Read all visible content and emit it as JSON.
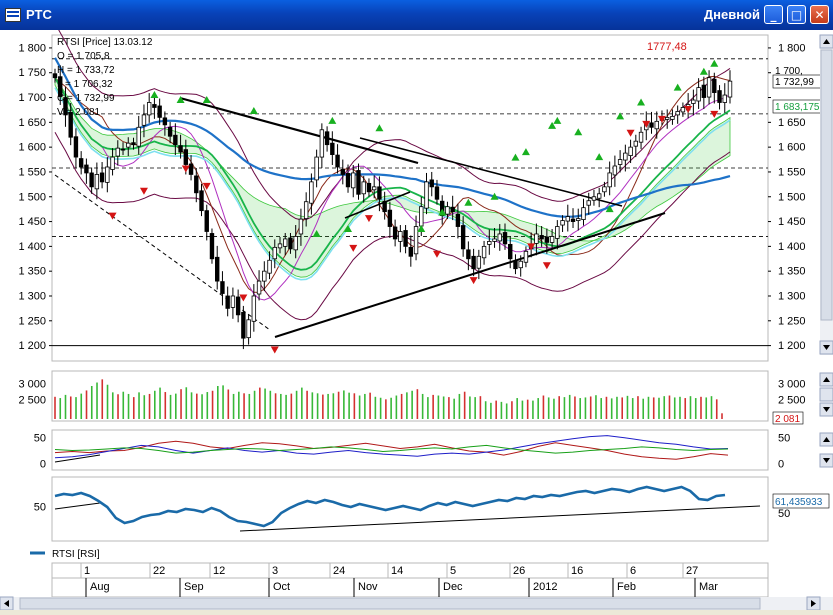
{
  "window": {
    "title": "РТС",
    "period": "Дневной",
    "min_label": "_",
    "max_label": "□",
    "close_label": "✕"
  },
  "header": {
    "symbol": "RTSI [Price] 13.03.12",
    "open": "O = 1 705,8",
    "high": "H = 1 733,72",
    "low": "L = 1 706,32",
    "close": "C = 1 732,99",
    "volume": "V = 2 081"
  },
  "labels": {
    "peak": "1777,48",
    "last_price": "1 732,99",
    "ma_value": "1 683,175",
    "hidden_value": "1 700,",
    "volume_last": "2 081",
    "rsi_value": "61,435933",
    "rsi_legend": "RTSI [RSI]"
  },
  "colors": {
    "candle": "#000000",
    "bull_arrow": "#18b020",
    "bear_arrow": "#d41414",
    "ma_blue": "#1e72c8",
    "ma_green": "#18b44a",
    "ma_cyan": "#7fe0f0",
    "band_dark": "#6a0a44",
    "band_brown": "#8a2a1a",
    "magenta": "#b030c0",
    "cloud_green": "#3ec83e",
    "cloud_cyan": "#38c8d8",
    "volume_red": "#d43030",
    "volume_green": "#38b838",
    "rsi": "#1a6aa8"
  },
  "time_axis": {
    "days": [
      "1",
      "22",
      "12",
      "3",
      "24",
      "14",
      "5",
      "26",
      "16",
      "6",
      "27"
    ],
    "months": [
      "Aug",
      "Sep",
      "Oct",
      "Nov",
      "Dec",
      "2012",
      "Feb",
      "Mar"
    ]
  },
  "chart_data": [
    {
      "type": "candlestick",
      "title": "RTSI [Price] 13.03.12",
      "ylim": [
        1175,
        1820
      ],
      "yticks": [
        1200,
        1250,
        1300,
        1350,
        1400,
        1450,
        1500,
        1550,
        1600,
        1650,
        1700,
        1750,
        1800
      ],
      "ytick_labels": [
        "1 200",
        "1 250",
        "1 300",
        "1 350",
        "1 400",
        "1 450",
        "1 500",
        "1 550",
        "1 600",
        "1 650",
        "1 700",
        "1 750",
        "1 800"
      ],
      "grid": false,
      "reference_levels": [
        1200,
        1420,
        1558,
        1667,
        1778
      ],
      "close": [
        1740,
        1702,
        1665,
        1620,
        1580,
        1560,
        1548,
        1520,
        1545,
        1530,
        1560,
        1580,
        1598,
        1595,
        1608,
        1605,
        1640,
        1665,
        1690,
        1680,
        1660,
        1645,
        1622,
        1605,
        1590,
        1565,
        1545,
        1508,
        1472,
        1430,
        1375,
        1330,
        1305,
        1275,
        1300,
        1262,
        1215,
        1252,
        1300,
        1330,
        1350,
        1372,
        1398,
        1405,
        1415,
        1395,
        1420,
        1455,
        1490,
        1530,
        1580,
        1635,
        1605,
        1585,
        1560,
        1545,
        1520,
        1548,
        1505,
        1530,
        1510,
        1520,
        1495,
        1470,
        1440,
        1415,
        1430,
        1400,
        1380,
        1440,
        1480,
        1530,
        1520,
        1495,
        1462,
        1480,
        1470,
        1440,
        1395,
        1375,
        1355,
        1380,
        1400,
        1410,
        1415,
        1425,
        1405,
        1375,
        1355,
        1370,
        1390,
        1405,
        1425,
        1415,
        1408,
        1420,
        1440,
        1452,
        1460,
        1450,
        1456,
        1478,
        1492,
        1500,
        1506,
        1520,
        1548,
        1562,
        1575,
        1588,
        1600,
        1612,
        1630,
        1648,
        1640,
        1652,
        1656,
        1660,
        1662,
        1672,
        1680,
        1686,
        1695,
        1720,
        1700,
        1740,
        1710,
        1690,
        1705,
        1733
      ],
      "high_events": [
        1707,
        1697,
        1697,
        1675,
        1655,
        1640,
        1490,
        1645,
        1632,
        1582,
        1477,
        1581,
        1437,
        1427,
        1437,
        1470,
        1502,
        1592,
        1655,
        1664,
        1692,
        1722,
        1754,
        1770
      ],
      "low_events": [
        1460,
        1510,
        1555,
        1520,
        1295,
        1190,
        1395,
        1455,
        1383,
        1330,
        1360,
        1398,
        1627,
        1645,
        1655,
        1675,
        1665
      ]
    },
    {
      "type": "bar",
      "title": "Volume",
      "ylim": [
        1900,
        3350
      ],
      "yticks": [
        2500,
        3000
      ],
      "ytick_labels": [
        "2 500",
        "3 000"
      ],
      "last_value": 2081,
      "values": [
        2600,
        2560,
        2660,
        2610,
        2590,
        2700,
        2800,
        2940,
        3050,
        3150,
        2980,
        2740,
        2680,
        2760,
        2690,
        2590,
        2740,
        2650,
        2690,
        2790,
        2890,
        2750,
        2660,
        2700,
        2840,
        2900,
        2740,
        2700,
        2680,
        2750,
        2790,
        2940,
        2960,
        2830,
        2690,
        2760,
        2710,
        2690,
        2790,
        2890,
        2860,
        2790,
        2710,
        2690,
        2660,
        2700,
        2790,
        2890,
        2790,
        2740,
        2710,
        2670,
        2690,
        2710,
        2760,
        2800,
        2730,
        2710,
        2640,
        2690,
        2730,
        2600,
        2570,
        2520,
        2570,
        2640,
        2690,
        2740,
        2790,
        2840,
        2690,
        2590,
        2660,
        2640,
        2610,
        2590,
        2540,
        2690,
        2760,
        2610,
        2590,
        2620,
        2460,
        2410,
        2480,
        2440,
        2390,
        2460,
        2560,
        2480,
        2510,
        2480,
        2560,
        2640,
        2580,
        2540,
        2620,
        2590,
        2660,
        2610,
        2560,
        2580,
        2610,
        2650,
        2560,
        2600,
        2550,
        2600,
        2580,
        2630,
        2560,
        2620,
        2540,
        2600,
        2580,
        2570,
        2620,
        2640,
        2580,
        2600,
        2560,
        2620,
        2560,
        2600,
        2580,
        2620,
        2520,
        2080
      ]
    },
    {
      "type": "line",
      "title": "Oscillator",
      "ylim": [
        -8,
        62
      ],
      "yticks": [
        0,
        50
      ],
      "ytick_labels": [
        "0",
        "50"
      ],
      "series": [
        {
          "color": "#b01818",
          "values": [
            22,
            24,
            22,
            25,
            26,
            32,
            40,
            44,
            40,
            33,
            30,
            36,
            41,
            39,
            35,
            30,
            32,
            36,
            40,
            35,
            30,
            33,
            38,
            31,
            25,
            23,
            17,
            24,
            34,
            41,
            36,
            31,
            26,
            19,
            14,
            11,
            9,
            14,
            20,
            17
          ]
        },
        {
          "color": "#1e1ec8",
          "values": [
            12,
            14,
            18,
            24,
            30,
            36,
            33,
            26,
            21,
            26,
            31,
            26,
            23,
            26,
            21,
            19,
            23,
            26,
            22,
            19,
            17,
            15,
            19,
            21,
            19,
            23,
            27,
            33,
            39,
            44,
            49,
            53,
            55,
            51,
            46,
            41,
            38,
            33,
            29,
            30
          ]
        },
        {
          "color": "#18a018",
          "values": [
            28,
            26,
            27,
            29,
            31,
            30,
            26,
            21,
            23,
            26,
            28,
            30,
            29,
            26,
            28,
            30,
            33,
            31,
            28,
            24,
            26,
            29,
            31,
            29,
            33,
            36,
            31,
            27,
            24,
            21,
            23,
            26,
            28,
            30,
            33,
            31,
            28,
            26,
            28,
            29
          ]
        }
      ]
    },
    {
      "type": "line",
      "title": "RTSI [RSI]",
      "ylim": [
        18,
        78
      ],
      "yticks": [
        50
      ],
      "ytick_labels": [
        "50"
      ],
      "last_value": 61.435933,
      "series": [
        {
          "name": "RTSI [RSI]",
          "color": "#1a6aa8",
          "values": [
            61,
            63,
            62,
            64,
            61,
            56,
            50,
            39,
            34,
            36,
            40,
            42,
            43,
            46,
            45,
            48,
            47,
            45,
            49,
            46,
            40,
            36,
            35,
            33,
            31,
            35,
            44,
            49,
            53,
            56,
            54,
            57,
            55,
            52,
            50,
            53,
            51,
            49,
            47,
            49,
            51,
            49,
            47,
            51,
            54,
            52,
            55,
            53,
            51,
            53,
            55,
            57,
            56,
            59,
            58,
            61,
            60,
            62,
            61,
            63,
            65,
            66,
            64,
            66,
            68,
            67,
            65,
            68,
            70,
            68,
            66,
            68,
            70,
            66,
            58,
            57,
            61,
            62
          ]
        }
      ]
    }
  ]
}
